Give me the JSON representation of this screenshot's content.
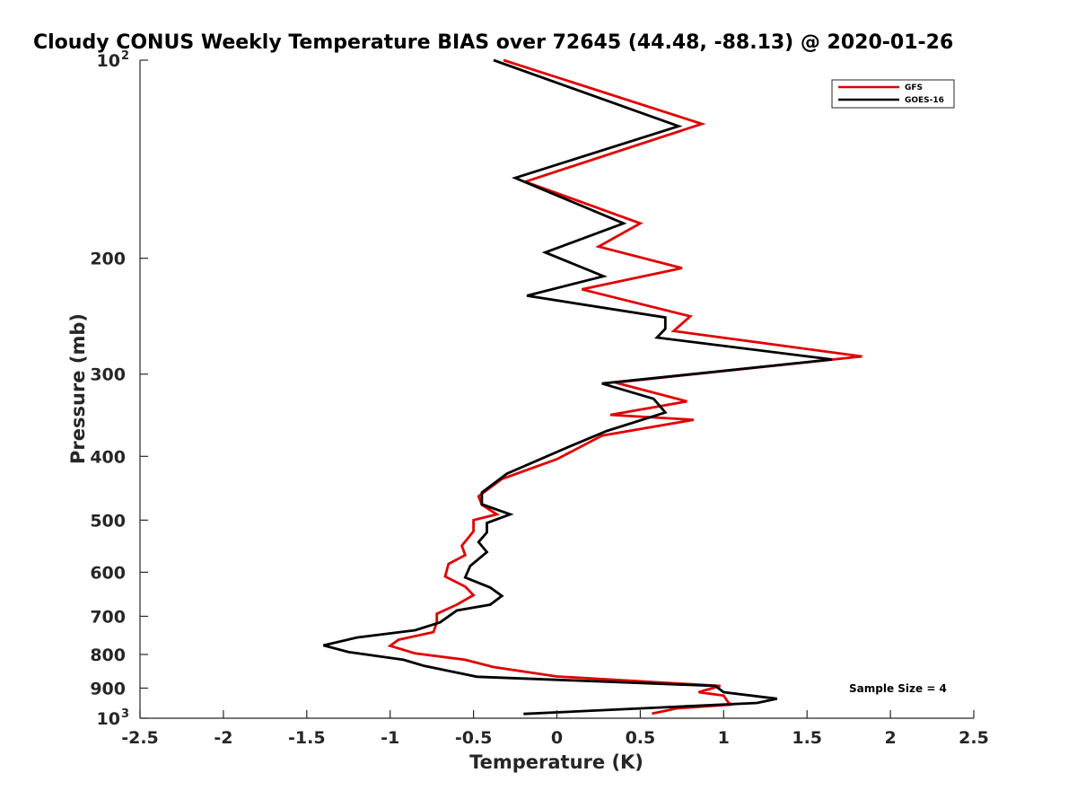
{
  "chart_data": {
    "type": "line",
    "title": "Cloudy CONUS Weekly Temperature BIAS over 72645 (44.48, -88.13) @ 2020-01-26",
    "xlabel": "Temperature (K)",
    "ylabel": "Pressure (mb)",
    "xlim": [
      -2.5,
      2.5
    ],
    "ylim": [
      100,
      1000
    ],
    "y_scale": "log",
    "y_reversed": true,
    "grid": false,
    "legend_position": "top-right",
    "x_ticks": [
      "-2.5",
      "-2",
      "-1.5",
      "-1",
      "-0.5",
      "0",
      "0.5",
      "1",
      "1.5",
      "2",
      "2.5"
    ],
    "x_tick_values": [
      -2.5,
      -2,
      -1.5,
      -1,
      -0.5,
      0,
      0.5,
      1,
      1.5,
      2,
      2.5
    ],
    "y_ticks": [
      {
        "value": 100,
        "label": "10",
        "sup": "2"
      },
      {
        "value": 200,
        "label": "200",
        "sup": ""
      },
      {
        "value": 300,
        "label": "300",
        "sup": ""
      },
      {
        "value": 400,
        "label": "400",
        "sup": ""
      },
      {
        "value": 500,
        "label": "500",
        "sup": ""
      },
      {
        "value": 600,
        "label": "600",
        "sup": ""
      },
      {
        "value": 700,
        "label": "700",
        "sup": ""
      },
      {
        "value": 800,
        "label": "800",
        "sup": ""
      },
      {
        "value": 900,
        "label": "900",
        "sup": ""
      },
      {
        "value": 1000,
        "label": "10",
        "sup": "3"
      }
    ],
    "annotation": "Sample Size = 4",
    "series": [
      {
        "name": "GFS",
        "color": "#e00000",
        "points": [
          [
            -0.32,
            100
          ],
          [
            0.87,
            125
          ],
          [
            -0.19,
            153
          ],
          [
            0.5,
            177
          ],
          [
            0.25,
            192
          ],
          [
            0.75,
            207
          ],
          [
            0.15,
            223
          ],
          [
            0.8,
            245
          ],
          [
            0.7,
            258
          ],
          [
            1.83,
            282
          ],
          [
            0.35,
            309
          ],
          [
            0.78,
            330
          ],
          [
            0.32,
            346
          ],
          [
            0.82,
            352
          ],
          [
            0.27,
            372
          ],
          [
            0.0,
            404
          ],
          [
            -0.33,
            433
          ],
          [
            -0.47,
            460
          ],
          [
            -0.45,
            474
          ],
          [
            -0.36,
            490
          ],
          [
            -0.5,
            500
          ],
          [
            -0.5,
            520
          ],
          [
            -0.57,
            547
          ],
          [
            -0.55,
            565
          ],
          [
            -0.65,
            583
          ],
          [
            -0.67,
            609
          ],
          [
            -0.55,
            631
          ],
          [
            -0.5,
            650
          ],
          [
            -0.6,
            672
          ],
          [
            -0.72,
            694
          ],
          [
            -0.72,
            715
          ],
          [
            -0.74,
            740
          ],
          [
            -0.95,
            760
          ],
          [
            -1.0,
            776
          ],
          [
            -0.85,
            797
          ],
          [
            -0.55,
            815
          ],
          [
            -0.38,
            836
          ],
          [
            0.0,
            864
          ],
          [
            0.98,
            893
          ],
          [
            0.85,
            913
          ],
          [
            1.0,
            924
          ],
          [
            1.03,
            948
          ],
          [
            1.05,
            953
          ],
          [
            0.72,
            966
          ],
          [
            0.57,
            984
          ]
        ]
      },
      {
        "name": "GOES-16",
        "color": "#000000",
        "points": [
          [
            -0.38,
            100
          ],
          [
            0.73,
            126
          ],
          [
            -0.25,
            151
          ],
          [
            0.4,
            177
          ],
          [
            -0.07,
            196
          ],
          [
            0.28,
            213
          ],
          [
            -0.18,
            228
          ],
          [
            0.65,
            246
          ],
          [
            0.65,
            256
          ],
          [
            0.6,
            264
          ],
          [
            1.65,
            285
          ],
          [
            0.27,
            310
          ],
          [
            0.58,
            327
          ],
          [
            0.65,
            343
          ],
          [
            0.3,
            366
          ],
          [
            0.07,
            387
          ],
          [
            -0.3,
            425
          ],
          [
            -0.45,
            454
          ],
          [
            -0.45,
            473
          ],
          [
            -0.28,
            490
          ],
          [
            -0.42,
            505
          ],
          [
            -0.42,
            522
          ],
          [
            -0.47,
            540
          ],
          [
            -0.42,
            559
          ],
          [
            -0.52,
            587
          ],
          [
            -0.55,
            611
          ],
          [
            -0.4,
            633
          ],
          [
            -0.33,
            652
          ],
          [
            -0.4,
            672
          ],
          [
            -0.6,
            686
          ],
          [
            -0.7,
            715
          ],
          [
            -0.85,
            735
          ],
          [
            -1.2,
            754
          ],
          [
            -1.4,
            775
          ],
          [
            -1.25,
            793
          ],
          [
            -0.92,
            815
          ],
          [
            -0.8,
            832
          ],
          [
            -0.48,
            865
          ],
          [
            0.95,
            893
          ],
          [
            1.0,
            913
          ],
          [
            1.32,
            934
          ],
          [
            1.2,
            948
          ],
          [
            -0.2,
            985
          ]
        ]
      }
    ]
  }
}
